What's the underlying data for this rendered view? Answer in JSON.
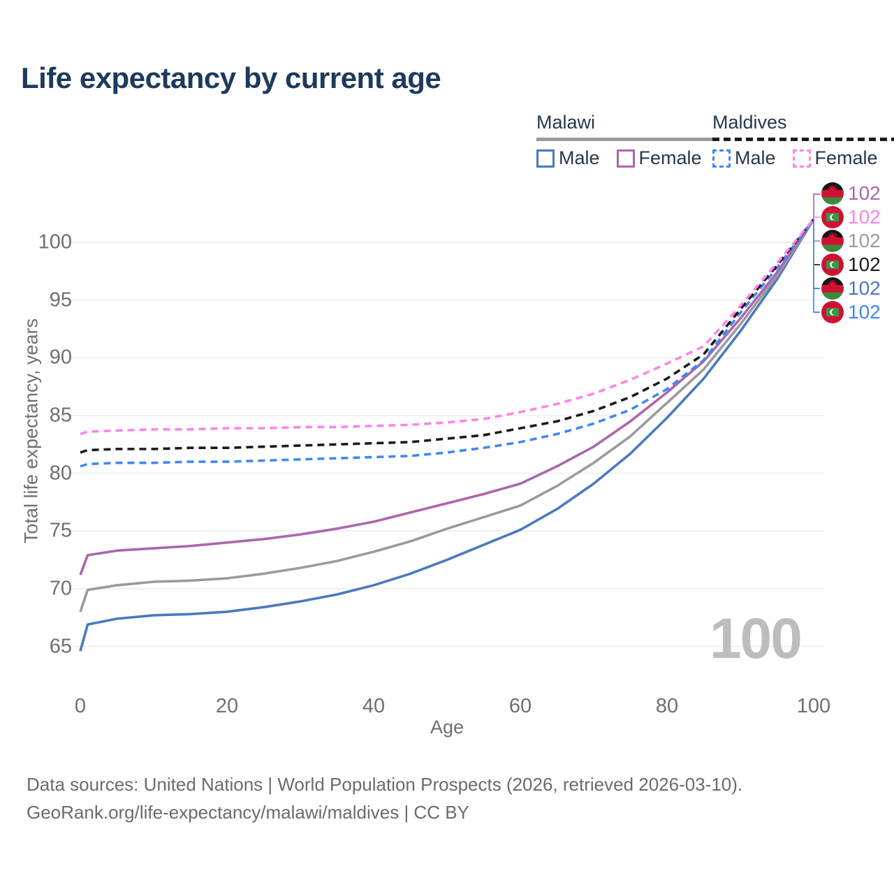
{
  "title": "Life expectancy by current age",
  "watermark_age": "100",
  "colors": {
    "title_text": "#1d3a5c",
    "legend_text": "#26384a",
    "axis_text": "#6f6f6f",
    "footer_text": "#6b6b6b",
    "grid": "#ececec",
    "watermark": "#bdbdbd",
    "malawi_male": "#4a79c0",
    "malawi_female": "#ad66ad",
    "malawi_all": "#9b9b9b",
    "maldives_male": "#3f88f6",
    "maldives_female": "#fd84ea",
    "maldives_all": "#1a1a1a"
  },
  "legend": {
    "groups": [
      {
        "label": "Malawi",
        "line_style": "solid",
        "underline_color": "#9b9b9b",
        "items": [
          {
            "label": "Male",
            "color": "#4a79c0"
          },
          {
            "label": "Female",
            "color": "#ad66ad"
          }
        ]
      },
      {
        "label": "Maldives",
        "line_style": "dashed",
        "underline_color": "#1a1a1a",
        "items": [
          {
            "label": "Male",
            "color": "#3f88f6"
          },
          {
            "label": "Female",
            "color": "#fd84ea"
          }
        ]
      }
    ]
  },
  "chart_data": {
    "type": "line",
    "title": "Life expectancy by current age",
    "xlabel": "Age",
    "ylabel": "Total life expectancy, years",
    "xlim": [
      0,
      100
    ],
    "ylim": [
      63,
      103.5
    ],
    "x_ticks": [
      0,
      20,
      40,
      60,
      80,
      100
    ],
    "y_ticks": [
      65,
      70,
      75,
      80,
      85,
      90,
      95,
      100
    ],
    "grid": "horizontal",
    "legend_position": "top-right",
    "x": [
      0,
      1,
      5,
      10,
      15,
      20,
      25,
      30,
      35,
      40,
      45,
      50,
      55,
      60,
      65,
      70,
      75,
      80,
      85,
      90,
      95,
      100
    ],
    "series": [
      {
        "name": "Malawi Male",
        "country": "Malawi",
        "sex": "Male",
        "color": "#4a79c0",
        "dash": "solid",
        "end_label": "102",
        "values": [
          64.6,
          66.9,
          67.4,
          67.7,
          67.8,
          68.0,
          68.4,
          68.9,
          69.5,
          70.3,
          71.3,
          72.5,
          73.8,
          75.1,
          76.9,
          79.1,
          81.7,
          84.8,
          88.2,
          92.3,
          96.8,
          102
        ]
      },
      {
        "name": "Malawi (all)",
        "country": "Malawi",
        "sex": "All",
        "color": "#9b9b9b",
        "dash": "solid",
        "end_label": "102",
        "values": [
          68.0,
          69.9,
          70.3,
          70.6,
          70.7,
          70.9,
          71.3,
          71.8,
          72.4,
          73.2,
          74.1,
          75.2,
          76.2,
          77.2,
          78.9,
          80.9,
          83.2,
          86.1,
          89.0,
          92.9,
          97.1,
          102
        ]
      },
      {
        "name": "Malawi Female",
        "country": "Malawi",
        "sex": "Female",
        "color": "#ad66ad",
        "dash": "solid",
        "end_label": "102",
        "values": [
          71.2,
          72.9,
          73.3,
          73.5,
          73.7,
          74.0,
          74.3,
          74.7,
          75.2,
          75.8,
          76.6,
          77.4,
          78.2,
          79.1,
          80.6,
          82.3,
          84.5,
          87.0,
          89.7,
          93.4,
          97.4,
          102
        ]
      },
      {
        "name": "Maldives Male",
        "country": "Maldives",
        "sex": "Male",
        "color": "#3f88f6",
        "dash": "dashed",
        "end_label": "102",
        "values": [
          80.6,
          80.8,
          80.9,
          80.9,
          81.0,
          81.0,
          81.1,
          81.2,
          81.3,
          81.4,
          81.5,
          81.8,
          82.2,
          82.7,
          83.4,
          84.3,
          85.5,
          87.3,
          89.8,
          93.9,
          97.8,
          102
        ]
      },
      {
        "name": "Maldives (all)",
        "country": "Maldives",
        "sex": "All",
        "color": "#1a1a1a",
        "dash": "dashed",
        "end_label": "102",
        "values": [
          81.8,
          82.0,
          82.1,
          82.1,
          82.2,
          82.2,
          82.3,
          82.4,
          82.5,
          82.6,
          82.7,
          83.0,
          83.3,
          83.9,
          84.5,
          85.4,
          86.6,
          88.2,
          90.3,
          94.2,
          98.0,
          102
        ]
      },
      {
        "name": "Maldives Female",
        "country": "Maldives",
        "sex": "Female",
        "color": "#fd84ea",
        "dash": "dashed",
        "end_label": "102",
        "values": [
          83.4,
          83.6,
          83.7,
          83.8,
          83.8,
          83.9,
          83.9,
          84.0,
          84.0,
          84.1,
          84.2,
          84.4,
          84.7,
          85.3,
          86.0,
          86.9,
          88.1,
          89.5,
          91.0,
          94.5,
          98.2,
          102
        ]
      }
    ],
    "end_labels": [
      {
        "series": "Malawi Female",
        "country": "Malawi",
        "value": "102",
        "color": "#ad66ad"
      },
      {
        "series": "Maldives Female",
        "country": "Maldives",
        "value": "102",
        "color": "#fd84ea"
      },
      {
        "series": "Malawi (all)",
        "country": "Malawi",
        "value": "102",
        "color": "#9b9b9b"
      },
      {
        "series": "Maldives (all)",
        "country": "Maldives",
        "value": "102",
        "color": "#1a1a1a"
      },
      {
        "series": "Malawi Male",
        "country": "Malawi",
        "value": "102",
        "color": "#4a79c0"
      },
      {
        "series": "Maldives Male",
        "country": "Maldives",
        "value": "102",
        "color": "#3f88f6"
      }
    ]
  },
  "footer": {
    "line1": "Data sources: United Nations | World Population Prospects (2026, retrieved 2026-03-10).",
    "line2": "GeoRank.org/life-expectancy/malawi/maldives | CC BY"
  }
}
